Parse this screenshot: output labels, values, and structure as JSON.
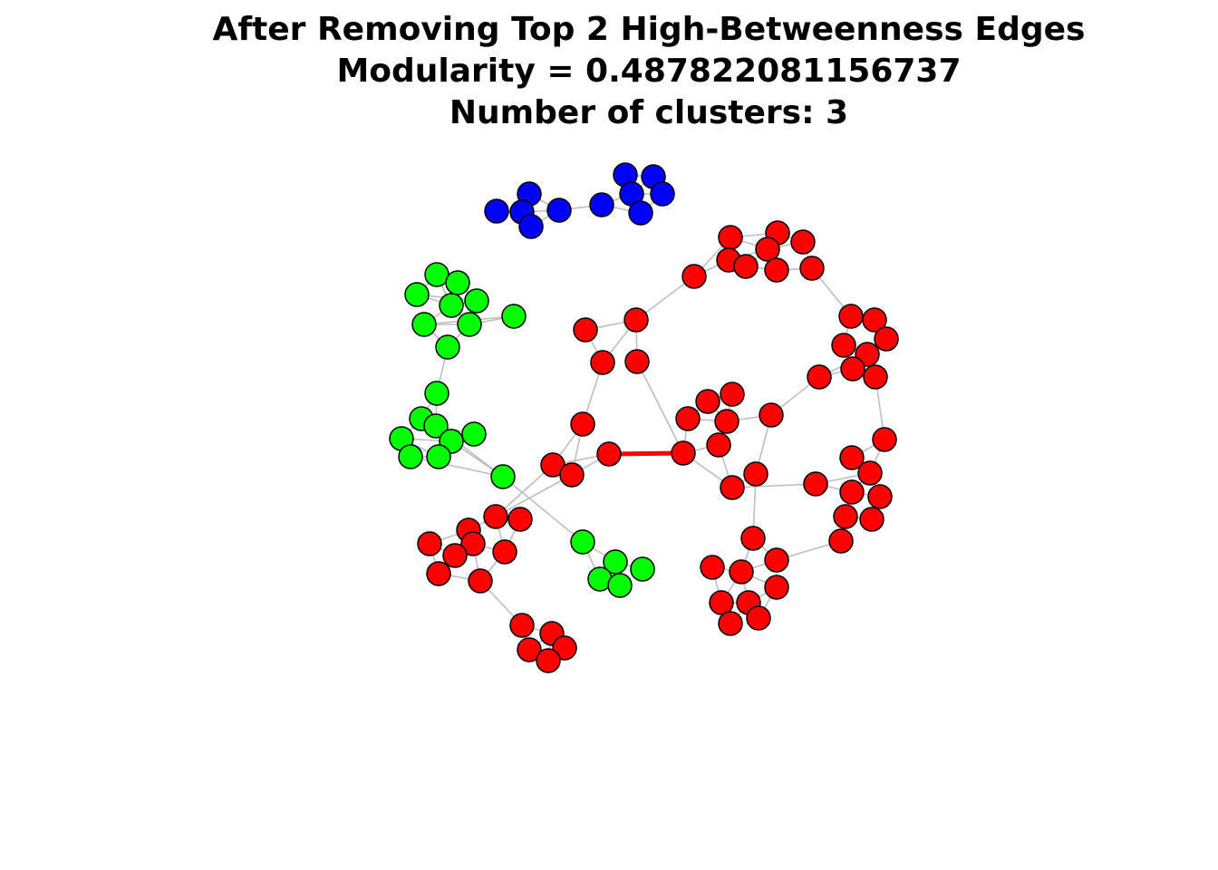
{
  "title": {
    "line1": "After Removing Top 2 High-Betweenness Edges",
    "line2": "Modularity = 0.487822081156737",
    "line3": "Number of clusters: 3"
  },
  "colors": {
    "red": "#ff0000",
    "green": "#00ff00",
    "blue": "#0000ff",
    "edge": "#bebebe",
    "highlight_edge": "#ff0000"
  }
}
